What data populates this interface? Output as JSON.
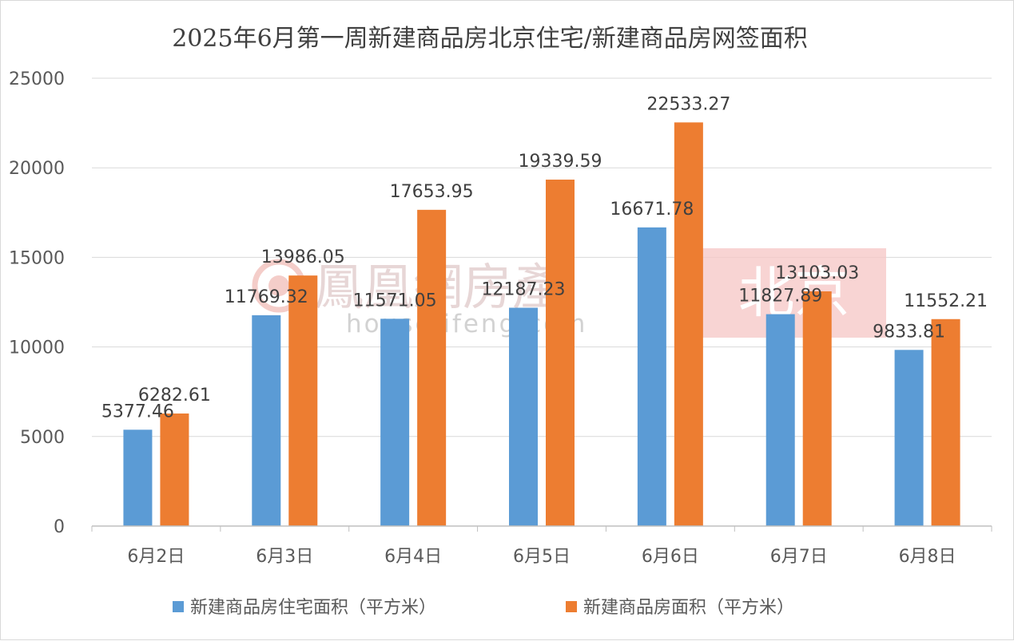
{
  "chart_data": {
    "type": "bar",
    "title": "2025年6月第一周新建商品房北京住宅/新建商品房网签面积",
    "categories": [
      "6月2日",
      "6月3日",
      "6月4日",
      "6月5日",
      "6月6日",
      "6月7日",
      "6月8日"
    ],
    "series": [
      {
        "name": "新建商品房住宅面积（平方米）",
        "color": "#5b9bd5",
        "values": [
          5377.46,
          11769.32,
          11571.05,
          12187.23,
          16671.78,
          11827.89,
          9833.81
        ],
        "labels": [
          "5377.46",
          "11769.32",
          "11571.05",
          "12187.23",
          "16671.78",
          "11827.89",
          "9833.81"
        ]
      },
      {
        "name": "新建商品房面积（平方米）",
        "color": "#ed7d31",
        "values": [
          6282.61,
          13986.05,
          17653.95,
          19339.59,
          22533.27,
          13103.03,
          11552.21
        ],
        "labels": [
          "6282.61",
          "13986.05",
          "17653.95",
          "19339.59",
          "22533.27",
          "13103.03",
          "11552.21"
        ]
      }
    ],
    "ylim": [
      0,
      25000
    ],
    "yticks": [
      0,
      5000,
      10000,
      15000,
      20000,
      25000
    ],
    "grid": true,
    "legend": "bottom"
  },
  "watermark": {
    "brand": "鳳凰網房產",
    "url": "house.ifeng.com",
    "city": "北京"
  }
}
